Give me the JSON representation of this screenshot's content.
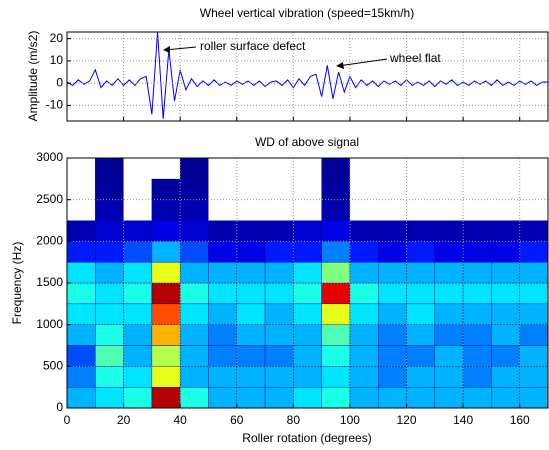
{
  "chart_data": [
    {
      "type": "line",
      "title": "Wheel vertical vibration (speed=15km/h)",
      "y_label": "Amplitude (m/s2)",
      "annotations": [
        "roller surface defect",
        "wheel flat"
      ],
      "color": "#0000ff",
      "grid": true,
      "xlim": [
        0,
        170
      ],
      "xticks": [
        0,
        20,
        40,
        60,
        80,
        100,
        120,
        140,
        160
      ],
      "ylim": [
        -17,
        23
      ],
      "yticks": [
        -10,
        0,
        10,
        20
      ],
      "x": [
        0,
        2,
        4,
        6,
        8,
        10,
        12,
        14,
        16,
        18,
        20,
        22,
        24,
        26,
        28,
        30,
        32,
        34,
        36,
        38,
        40,
        42,
        44,
        46,
        48,
        50,
        52,
        54,
        56,
        58,
        60,
        62,
        64,
        66,
        68,
        70,
        72,
        74,
        76,
        78,
        80,
        82,
        84,
        86,
        88,
        90,
        92,
        94,
        96,
        98,
        100,
        102,
        104,
        106,
        108,
        110,
        112,
        114,
        116,
        118,
        120,
        122,
        124,
        126,
        128,
        130,
        132,
        134,
        136,
        138,
        140,
        142,
        144,
        146,
        148,
        150,
        152,
        154,
        156,
        158,
        160,
        162,
        164,
        166,
        168,
        170
      ],
      "values": [
        0.5,
        -1,
        1.5,
        -0.5,
        1,
        6,
        -2,
        1,
        -1,
        2,
        -1,
        1.5,
        -1,
        2,
        3,
        -14,
        23,
        -16,
        15,
        -8,
        6,
        -3,
        2,
        -1.5,
        1,
        -1,
        1.5,
        -1,
        0.5,
        -1,
        1,
        -0.5,
        1,
        -1,
        1,
        -1.5,
        0.5,
        1,
        -1,
        1.5,
        -2,
        2,
        -1,
        3,
        4,
        -6,
        8,
        -7,
        5,
        -4,
        3,
        -2,
        1.5,
        -1,
        1,
        -1.5,
        1,
        -0.5,
        1,
        -1,
        1.5,
        -1,
        0.5,
        -1,
        1,
        -1.5,
        1,
        -0.5,
        1.5,
        -1,
        0.5,
        -1,
        1,
        -0.5,
        1,
        -1,
        1.5,
        -1,
        0.5,
        -1,
        1,
        -0.5,
        1,
        -1,
        0.5,
        0.5
      ]
    },
    {
      "type": "heatmap",
      "title": "WD of above signal",
      "x_label": "Roller rotation (degrees)",
      "y_label": "Frequency (Hz)",
      "grid": true,
      "colormap": "jet",
      "xlim": [
        0,
        170
      ],
      "xticks": [
        0,
        20,
        40,
        60,
        80,
        100,
        120,
        140,
        160
      ],
      "ylim": [
        0,
        3000
      ],
      "yticks": [
        0,
        500,
        1000,
        1500,
        2000,
        2500,
        3000
      ],
      "xbins": [
        0,
        10,
        20,
        30,
        40,
        50,
        60,
        70,
        80,
        90,
        100,
        110,
        120,
        130,
        140,
        150,
        160,
        170
      ],
      "ybins": [
        0,
        250,
        500,
        750,
        1000,
        1250,
        1500,
        1750,
        2000,
        2250,
        2500,
        2750,
        3000
      ],
      "values": [
        [
          0.3,
          0.35,
          0.4,
          0.95,
          0.4,
          0.3,
          0.3,
          0.3,
          0.35,
          0.4,
          0.3,
          0.3,
          0.3,
          0.3,
          0.3,
          0.3,
          0.3
        ],
        [
          0.25,
          0.4,
          0.35,
          0.6,
          0.3,
          0.3,
          0.3,
          0.3,
          0.3,
          0.35,
          0.3,
          0.25,
          0.3,
          0.3,
          0.25,
          0.3,
          0.3
        ],
        [
          0.2,
          0.45,
          0.3,
          0.55,
          0.3,
          0.25,
          0.25,
          0.25,
          0.3,
          0.4,
          0.3,
          0.25,
          0.25,
          0.3,
          0.25,
          0.25,
          0.3
        ],
        [
          0.3,
          0.4,
          0.3,
          0.7,
          0.3,
          0.25,
          0.3,
          0.3,
          0.3,
          0.45,
          0.3,
          0.25,
          0.3,
          0.25,
          0.25,
          0.3,
          0.25
        ],
        [
          0.35,
          0.35,
          0.35,
          0.8,
          0.35,
          0.3,
          0.35,
          0.3,
          0.35,
          0.6,
          0.35,
          0.3,
          0.35,
          0.3,
          0.3,
          0.3,
          0.3
        ],
        [
          0.4,
          0.35,
          0.4,
          0.95,
          0.4,
          0.35,
          0.35,
          0.35,
          0.4,
          0.9,
          0.4,
          0.35,
          0.35,
          0.35,
          0.35,
          0.35,
          0.35
        ],
        [
          0.35,
          0.3,
          0.35,
          0.6,
          0.3,
          0.3,
          0.3,
          0.3,
          0.35,
          0.5,
          0.3,
          0.3,
          0.3,
          0.3,
          0.3,
          0.3,
          0.3
        ],
        [
          0.15,
          0.15,
          0.2,
          0.3,
          0.2,
          0.1,
          0.1,
          0.15,
          0.15,
          0.25,
          0.15,
          0.1,
          0.15,
          0.1,
          0.1,
          0.1,
          0.15
        ],
        [
          0.05,
          0.08,
          0.08,
          0.1,
          0.08,
          0.05,
          0.05,
          0.05,
          0.08,
          0.1,
          0.05,
          0.05,
          0.05,
          0.05,
          0.05,
          0.05,
          0.05
        ],
        [
          0,
          0.05,
          0,
          0.05,
          0.05,
          0,
          0,
          0,
          0,
          0.05,
          0,
          0,
          0,
          0,
          0,
          0,
          0
        ],
        [
          0,
          0.03,
          0,
          0.03,
          0.03,
          0,
          0,
          0,
          0,
          0.03,
          0,
          0,
          0,
          0,
          0,
          0,
          0
        ],
        [
          0,
          0.02,
          0,
          0,
          0.02,
          0,
          0,
          0,
          0,
          0.02,
          0,
          0,
          0,
          0,
          0,
          0,
          0
        ]
      ]
    }
  ]
}
